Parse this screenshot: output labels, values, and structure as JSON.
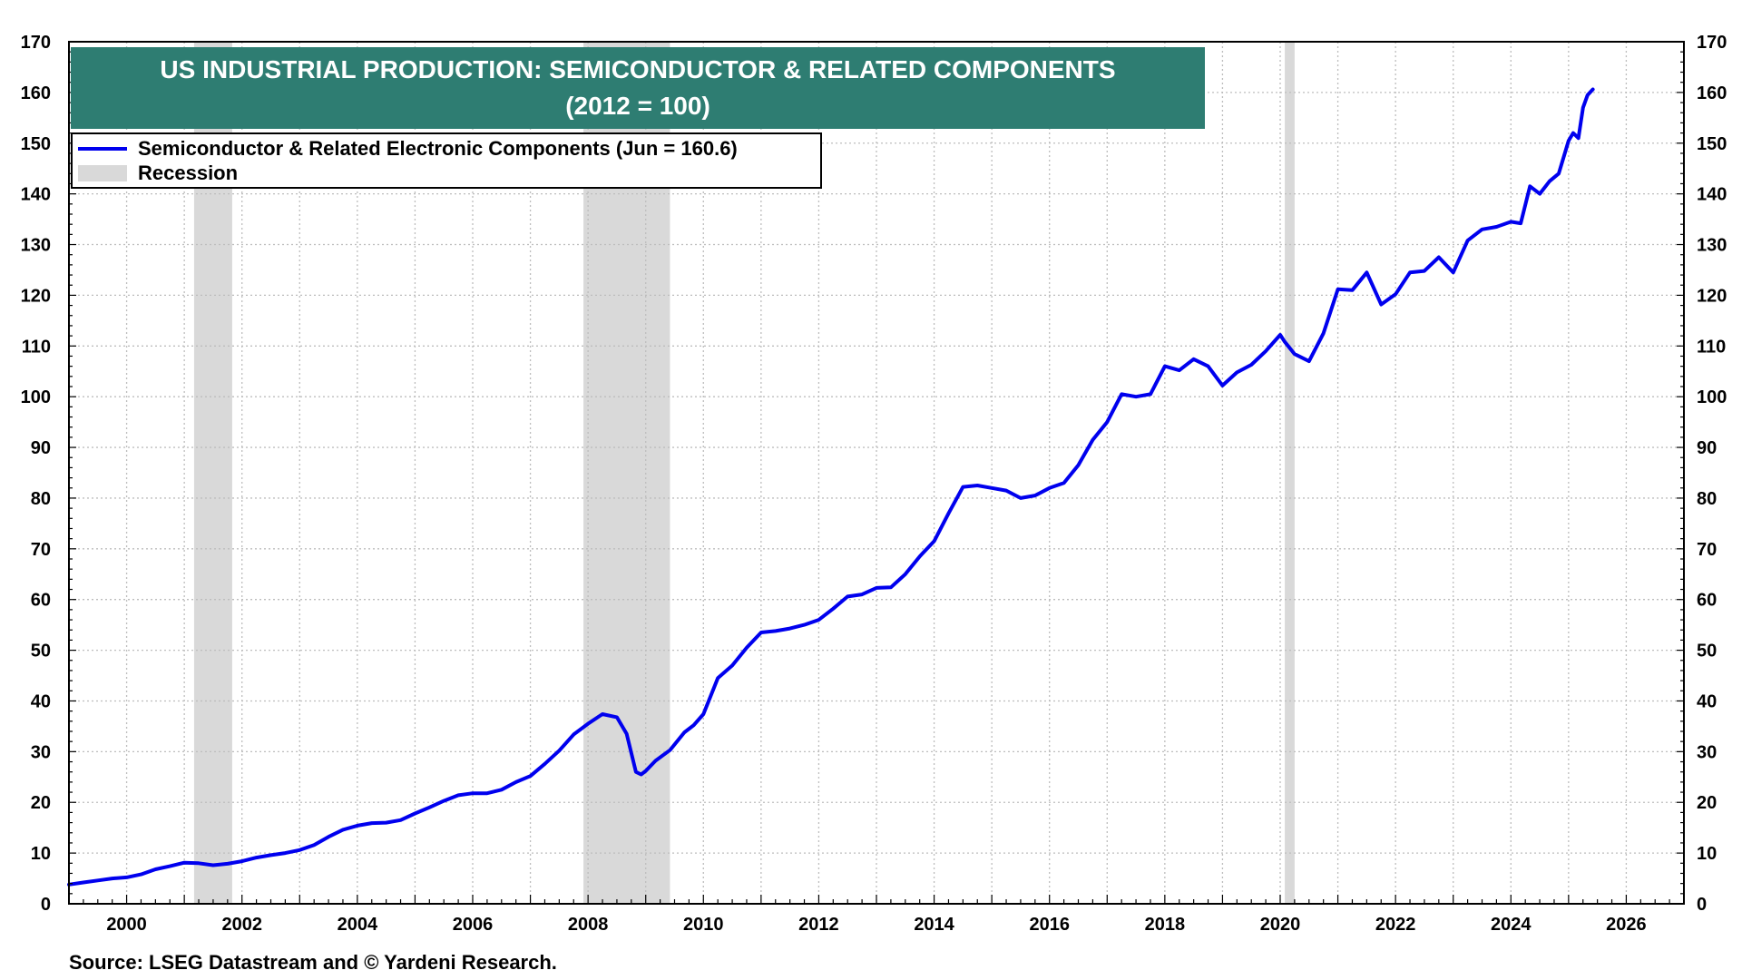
{
  "chart_data": {
    "type": "line",
    "title": "US INDUSTRIAL PRODUCTION: SEMICONDUCTOR & RELATED COMPONENTS",
    "subtitle": "(2012 = 100)",
    "source": "Source: LSEG Datastream and © Yardeni Research.",
    "ylim": [
      0,
      170
    ],
    "yticks": [
      0,
      10,
      20,
      30,
      40,
      50,
      60,
      70,
      80,
      90,
      100,
      110,
      120,
      130,
      140,
      150,
      160,
      170
    ],
    "xlim": [
      1999.0,
      2027.0
    ],
    "xticks": [
      2000,
      2002,
      2004,
      2006,
      2008,
      2010,
      2012,
      2014,
      2016,
      2018,
      2020,
      2022,
      2024,
      2026
    ],
    "grid": true,
    "legend": {
      "placement": "top-left",
      "entries": [
        {
          "label": "Semiconductor & Related Electronic Components (Jun  = 160.6)",
          "kind": "line",
          "color": "#0000ee"
        },
        {
          "label": "Recession",
          "kind": "box",
          "color": "#d9d9d9"
        }
      ]
    },
    "recessions": [
      {
        "start": 2001.17,
        "end": 2001.83
      },
      {
        "start": 2007.92,
        "end": 2009.42
      },
      {
        "start": 2020.08,
        "end": 2020.25
      }
    ],
    "series": [
      {
        "name": "Semiconductor & Related Electronic Components",
        "color": "#0000ee",
        "x": [
          1999.0,
          1999.25,
          1999.5,
          1999.75,
          2000.0,
          2000.25,
          2000.5,
          2000.75,
          2001.0,
          2001.25,
          2001.5,
          2001.75,
          2002.0,
          2002.25,
          2002.5,
          2002.75,
          2003.0,
          2003.25,
          2003.5,
          2003.75,
          2004.0,
          2004.25,
          2004.5,
          2004.75,
          2005.0,
          2005.25,
          2005.5,
          2005.75,
          2006.0,
          2006.25,
          2006.5,
          2006.75,
          2007.0,
          2007.25,
          2007.5,
          2007.75,
          2008.0,
          2008.25,
          2008.5,
          2008.67,
          2008.83,
          2008.92,
          2009.0,
          2009.17,
          2009.42,
          2009.67,
          2009.83,
          2010.0,
          2010.25,
          2010.5,
          2010.75,
          2011.0,
          2011.25,
          2011.5,
          2011.75,
          2012.0,
          2012.25,
          2012.5,
          2012.75,
          2013.0,
          2013.25,
          2013.5,
          2013.75,
          2014.0,
          2014.25,
          2014.5,
          2014.75,
          2015.0,
          2015.25,
          2015.5,
          2015.75,
          2016.0,
          2016.25,
          2016.5,
          2016.75,
          2017.0,
          2017.25,
          2017.5,
          2017.75,
          2018.0,
          2018.25,
          2018.5,
          2018.75,
          2019.0,
          2019.25,
          2019.5,
          2019.75,
          2020.0,
          2020.08,
          2020.25,
          2020.5,
          2020.75,
          2021.0,
          2021.25,
          2021.5,
          2021.75,
          2022.0,
          2022.25,
          2022.5,
          2022.75,
          2023.0,
          2023.25,
          2023.5,
          2023.75,
          2024.0,
          2024.17,
          2024.33,
          2024.5,
          2024.67,
          2024.83,
          2025.0,
          2025.08,
          2025.17,
          2025.25,
          2025.33,
          2025.42
        ],
        "y": [
          3.8,
          4.2,
          4.6,
          5.0,
          5.2,
          5.8,
          6.8,
          7.4,
          8.1,
          8.0,
          7.6,
          7.9,
          8.4,
          9.1,
          9.6,
          10.0,
          10.6,
          11.6,
          13.2,
          14.6,
          15.4,
          15.9,
          16.0,
          16.5,
          17.8,
          19.0,
          20.3,
          21.4,
          21.8,
          21.8,
          22.5,
          24.0,
          25.2,
          27.6,
          30.2,
          33.4,
          35.5,
          37.4,
          36.8,
          33.5,
          26.0,
          25.5,
          26.2,
          28.2,
          30.3,
          33.8,
          35.2,
          37.4,
          44.5,
          47.0,
          50.5,
          53.5,
          53.8,
          54.3,
          55.0,
          56.0,
          58.2,
          60.6,
          61.0,
          62.3,
          62.4,
          65.0,
          68.5,
          71.5,
          77.0,
          82.2,
          82.5,
          82.0,
          81.5,
          80.0,
          80.5,
          82.0,
          83.0,
          86.5,
          91.5,
          95.0,
          100.5,
          100.0,
          100.5,
          106.0,
          105.2,
          107.4,
          106.0,
          102.2,
          104.8,
          106.3,
          109.0,
          112.2,
          110.8,
          108.4,
          107.0,
          112.5,
          121.2,
          121.0,
          124.5,
          118.2,
          120.2,
          124.5,
          124.8,
          127.5,
          124.5,
          130.8,
          133.0,
          133.5,
          134.5,
          134.2,
          141.5,
          140.0,
          142.5,
          144.0,
          150.5,
          152.0,
          151.0,
          157.0,
          159.5,
          160.6
        ]
      }
    ]
  }
}
